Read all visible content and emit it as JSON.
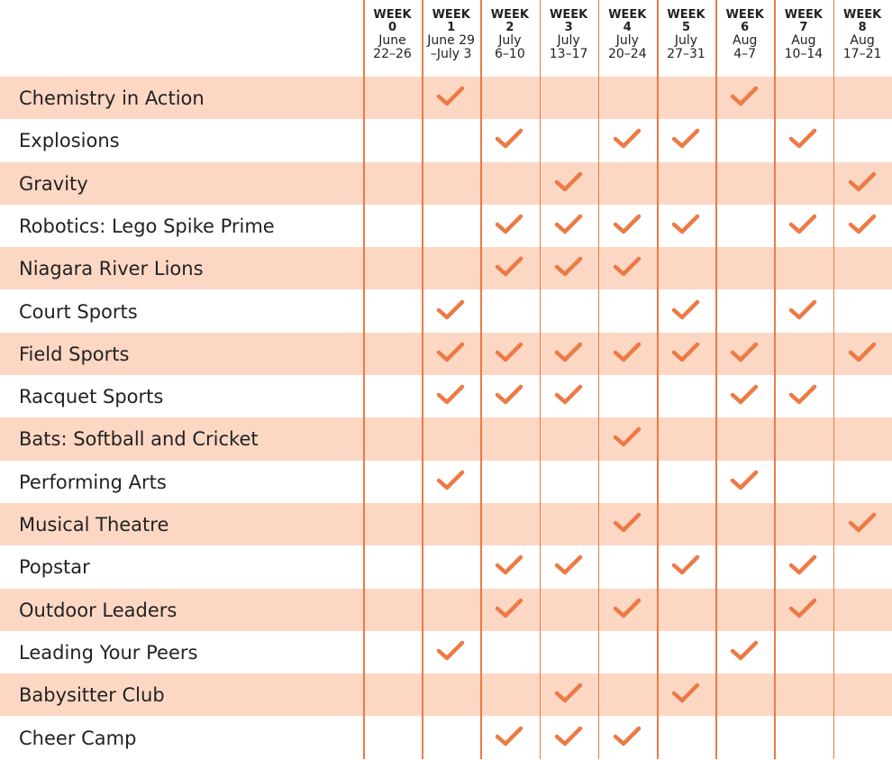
{
  "table": {
    "weeks": [
      {
        "label": "WEEK",
        "number": "0",
        "dates": [
          "June",
          "22–26"
        ]
      },
      {
        "label": "WEEK",
        "number": "1",
        "dates": [
          "June 29",
          "–July 3"
        ]
      },
      {
        "label": "WEEK",
        "number": "2",
        "dates": [
          "July",
          "6–10"
        ]
      },
      {
        "label": "WEEK",
        "number": "3",
        "dates": [
          "July",
          "13–17"
        ]
      },
      {
        "label": "WEEK",
        "number": "4",
        "dates": [
          "July",
          "20–24"
        ]
      },
      {
        "label": "WEEK",
        "number": "5",
        "dates": [
          "July",
          "27–31"
        ]
      },
      {
        "label": "WEEK",
        "number": "6",
        "dates": [
          "Aug",
          "4–7"
        ]
      },
      {
        "label": "WEEK",
        "number": "7",
        "dates": [
          "Aug",
          "10–14"
        ]
      },
      {
        "label": "WEEK",
        "number": "8",
        "dates": [
          "Aug",
          "17–21"
        ]
      }
    ],
    "rows": [
      {
        "name": "Chemistry in Action",
        "checked": [
          false,
          true,
          false,
          false,
          false,
          false,
          true,
          false,
          false
        ]
      },
      {
        "name": "Explosions",
        "checked": [
          false,
          false,
          true,
          false,
          true,
          true,
          false,
          true,
          false
        ]
      },
      {
        "name": "Gravity",
        "checked": [
          false,
          false,
          false,
          true,
          false,
          false,
          false,
          false,
          true
        ]
      },
      {
        "name": "Robotics: Lego Spike Prime",
        "checked": [
          false,
          false,
          true,
          true,
          true,
          true,
          false,
          true,
          true
        ]
      },
      {
        "name": "Niagara River Lions",
        "checked": [
          false,
          false,
          true,
          true,
          true,
          false,
          false,
          false,
          false
        ]
      },
      {
        "name": "Court Sports",
        "checked": [
          false,
          true,
          false,
          false,
          false,
          true,
          false,
          true,
          false
        ]
      },
      {
        "name": "Field Sports",
        "checked": [
          false,
          true,
          true,
          true,
          true,
          true,
          true,
          false,
          true
        ]
      },
      {
        "name": "Racquet Sports",
        "checked": [
          false,
          true,
          true,
          true,
          false,
          false,
          true,
          true,
          false
        ]
      },
      {
        "name": "Bats: Softball and Cricket",
        "checked": [
          false,
          false,
          false,
          false,
          true,
          false,
          false,
          false,
          false
        ]
      },
      {
        "name": "Performing Arts",
        "checked": [
          false,
          true,
          false,
          false,
          false,
          false,
          true,
          false,
          false
        ]
      },
      {
        "name": "Musical Theatre",
        "checked": [
          false,
          false,
          false,
          false,
          true,
          false,
          false,
          false,
          true
        ]
      },
      {
        "name": "Popstar",
        "checked": [
          false,
          false,
          true,
          true,
          false,
          true,
          false,
          true,
          false
        ]
      },
      {
        "name": "Outdoor Leaders",
        "checked": [
          false,
          false,
          true,
          false,
          true,
          false,
          false,
          true,
          false
        ]
      },
      {
        "name": "Leading Your Peers",
        "checked": [
          false,
          true,
          false,
          false,
          false,
          false,
          true,
          false,
          false
        ]
      },
      {
        "name": "Babysitter Club",
        "checked": [
          false,
          false,
          false,
          true,
          false,
          true,
          false,
          false,
          false
        ]
      },
      {
        "name": "Cheer Camp",
        "checked": [
          false,
          false,
          true,
          true,
          true,
          false,
          false,
          false,
          false
        ]
      }
    ]
  }
}
